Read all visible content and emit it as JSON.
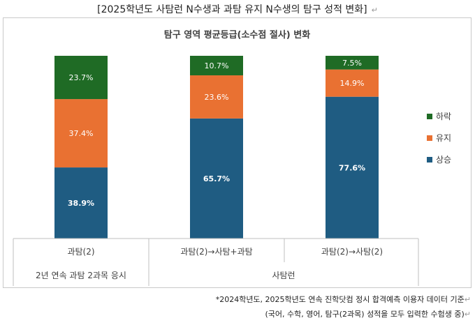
{
  "document": {
    "title": "[2025학년도 사탐런 N수생과 과탐 유지 N수생의 탐구 성적 변화]",
    "footnote_line1": "*2024학년도, 2025학년도 연속 진학닷컴 정시 합격예측 이용자 데이터 기준",
    "footnote_line2": "(국어, 수학, 영어, 탐구(2과목) 성적을 모두 입력한 수험생 중)"
  },
  "chart_data": {
    "type": "bar",
    "stacked": true,
    "percent_stacked": true,
    "title": "탐구 영역 평균등급(소수점 절사) 변화",
    "categories": [
      "과탐(2)",
      "과탐(2)→사탐+과탐",
      "과탐(2)→사탐(2)"
    ],
    "groups": [
      {
        "label": "2년 연속 과탐 2과목 응시",
        "categories": [
          "과탐(2)"
        ]
      },
      {
        "label": "사탐런",
        "categories": [
          "과탐(2)→사탐+과탐",
          "과탐(2)→사탐(2)"
        ]
      }
    ],
    "series": [
      {
        "name": "상승",
        "values": [
          38.9,
          65.7,
          77.6
        ],
        "color": "#1f5c82",
        "label_color": "#ffffff",
        "label_bold": true
      },
      {
        "name": "유지",
        "values": [
          37.4,
          23.6,
          14.9
        ],
        "color": "#e97132",
        "label_color": "#ffffff",
        "label_bold": false
      },
      {
        "name": "하락",
        "values": [
          23.7,
          10.7,
          7.5
        ],
        "color": "#1f6b25",
        "label_color": "#ffffff",
        "label_bold": false
      }
    ],
    "value_suffix": "%",
    "ylim": [
      0,
      100
    ],
    "legend_position": "right",
    "legend_order": [
      "하락",
      "유지",
      "상승"
    ],
    "grid": false
  }
}
